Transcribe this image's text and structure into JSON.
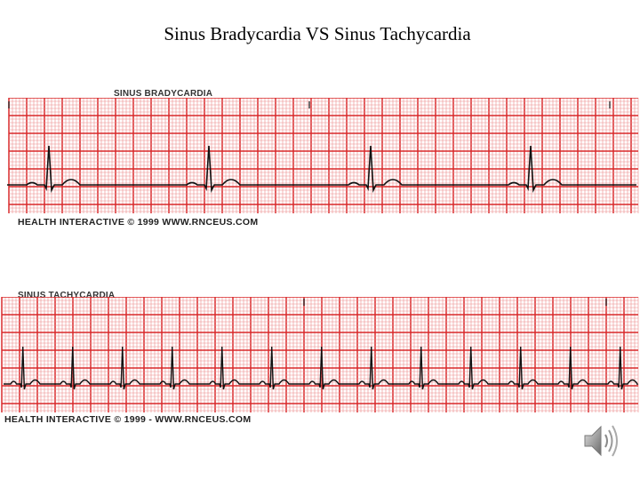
{
  "slide": {
    "title": "Sinus Bradycardia VS Sinus Tachycardia"
  },
  "strips": [
    {
      "label": "SINUS BRADYCARDIA",
      "credit": "HEALTH  INTERACTIVE  © 1999  WWW.RNCEUS.COM"
    },
    {
      "label": "SINUS TACHYCARDIA",
      "credit": "HEALTH  INTERACTIVE © 1999 - WWW.RNCEUS.COM"
    }
  ],
  "icons": {
    "speaker": "speaker-icon"
  },
  "colors": {
    "grid_major": "#d9282a",
    "grid_minor": "#ec8b8b",
    "trace": "#111111"
  }
}
